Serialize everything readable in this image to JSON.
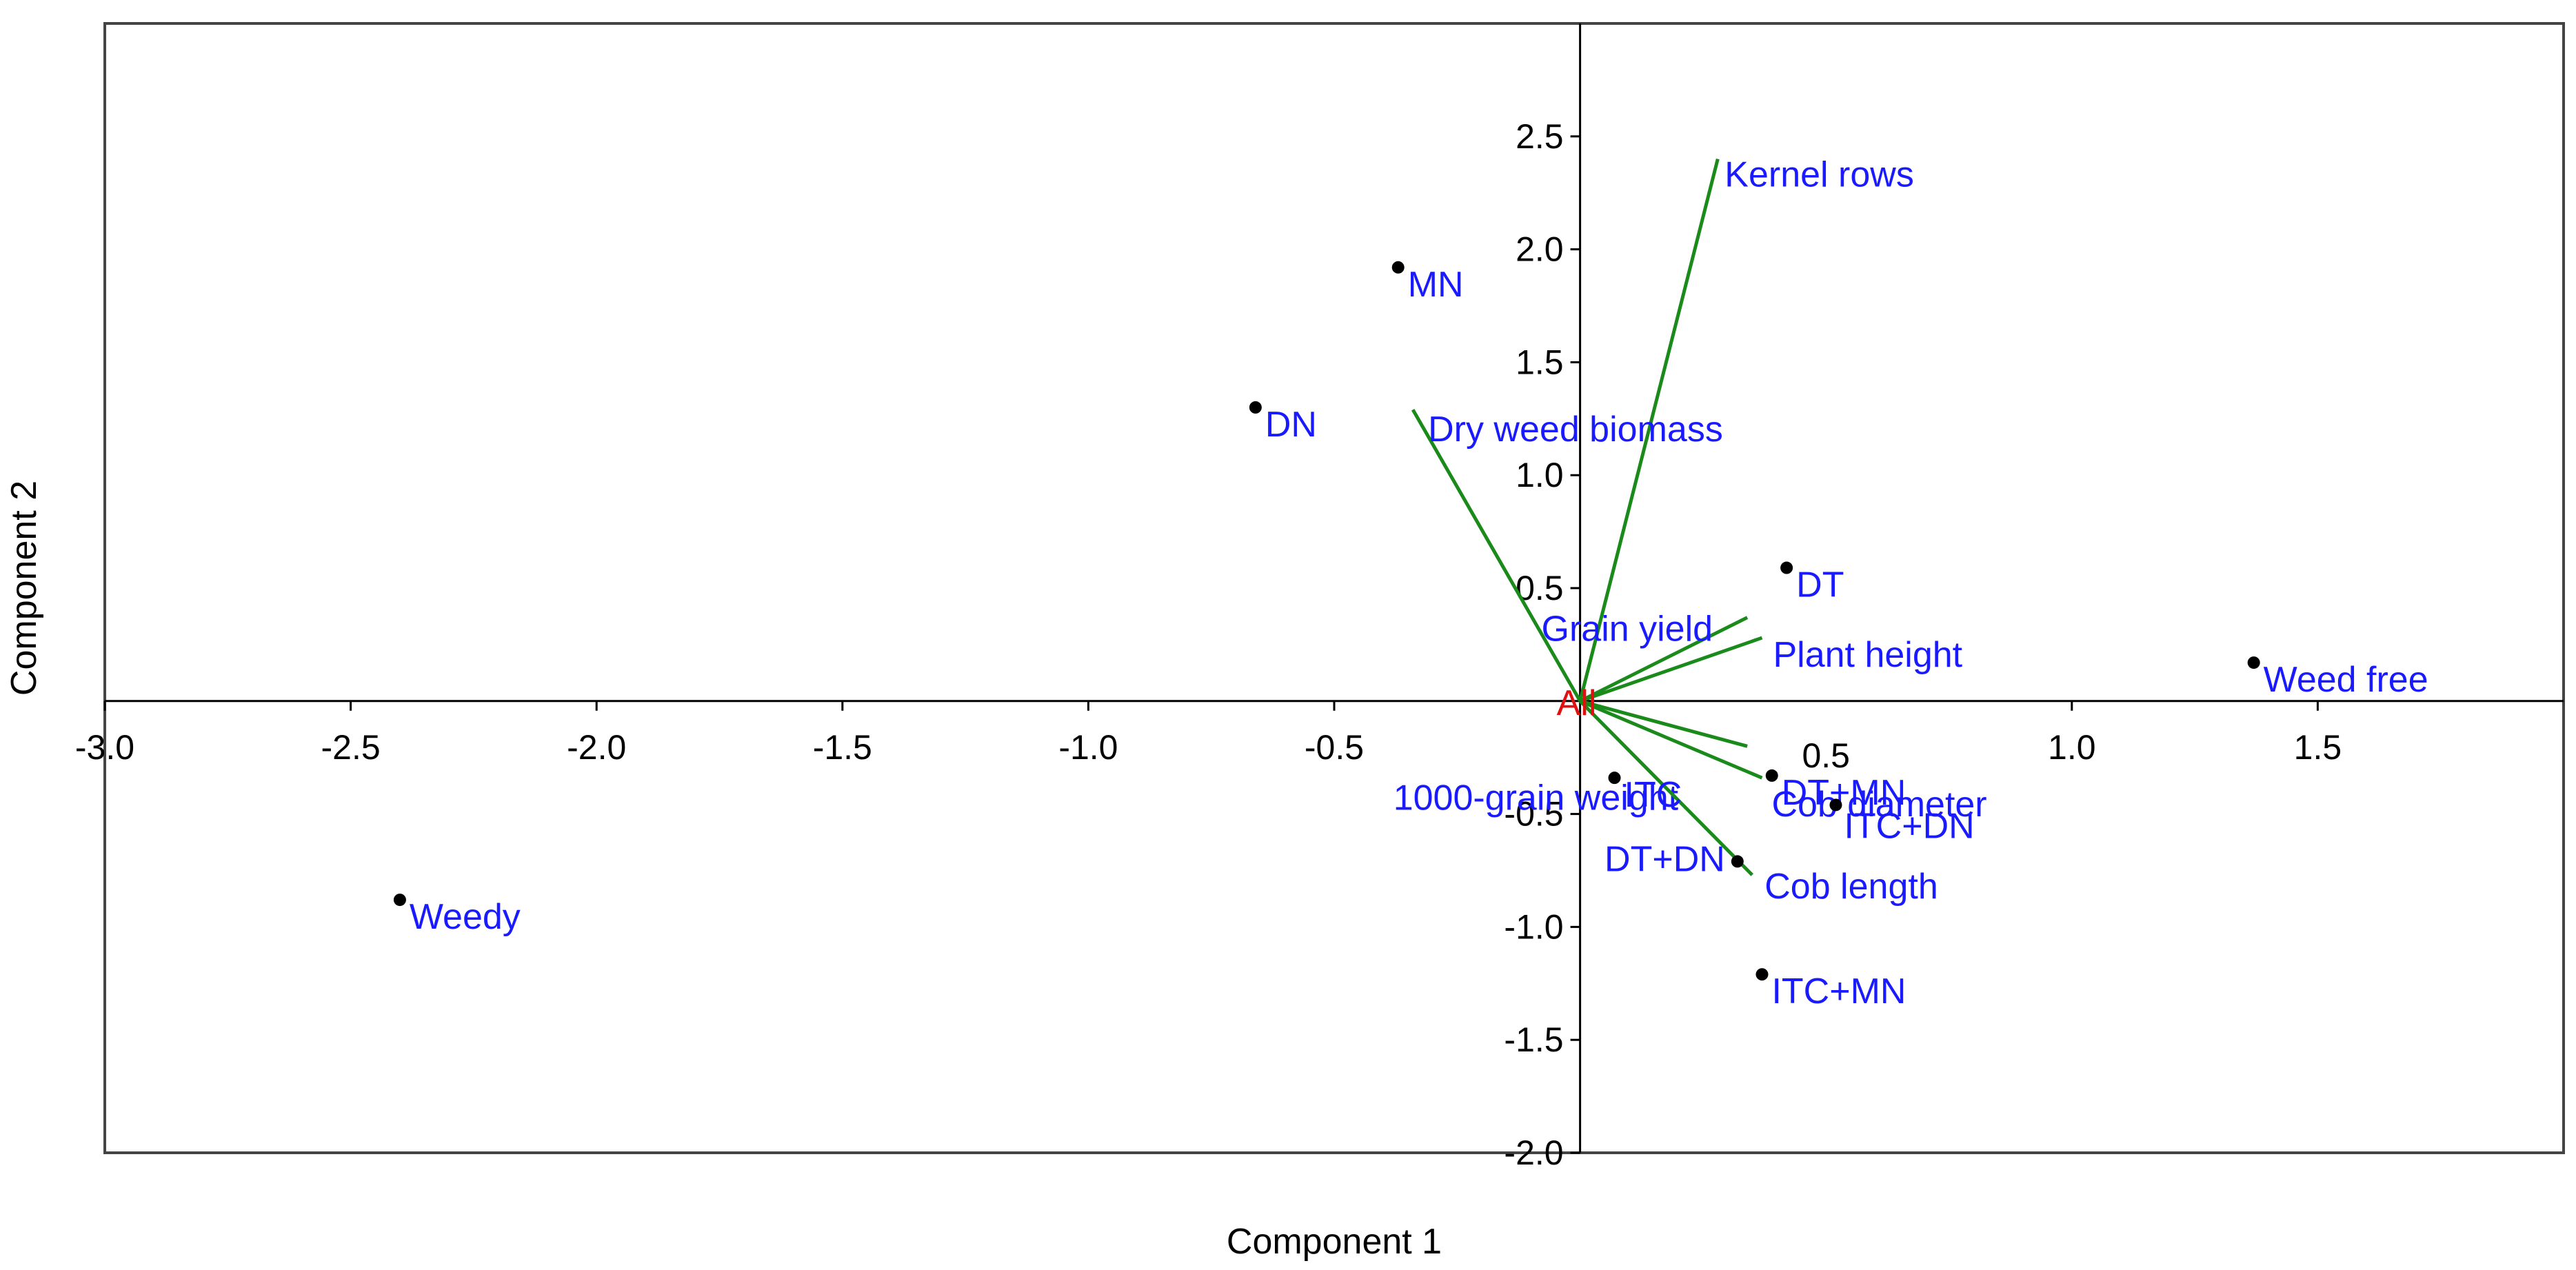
{
  "chart_data": {
    "type": "scatter",
    "subtype": "biplot",
    "title": "",
    "xlabel": "Component 1",
    "ylabel": "Component 2",
    "xlim": [
      -3.0,
      2.0
    ],
    "ylim": [
      -2.0,
      3.0
    ],
    "xticks": [
      -3.0,
      -2.5,
      -2.0,
      -1.5,
      -1.0,
      -0.5,
      1.0,
      1.5
    ],
    "xtick_labels": [
      "-3.0",
      "-2.5",
      "-2.0",
      "-1.5",
      "-1.0",
      "-0.5",
      "1.0",
      "1.5"
    ],
    "yticks": [
      2.5,
      2.0,
      1.5,
      1.0,
      0.5,
      -0.5,
      -1.0,
      -1.5,
      -2.0
    ],
    "ytick_labels": [
      "2.5",
      "2.0",
      "1.5",
      "1.0",
      "0.5",
      "-0.5",
      "-1.0",
      "-1.5",
      "-2.0"
    ],
    "extra_x_label": {
      "x": 0.5,
      "text": "0.5"
    },
    "grid": false,
    "legend": "none",
    "colors": {
      "points": "#000000",
      "point_labels": "#1a1aff",
      "vectors": "#1a8a1a",
      "vector_labels": "#1a1aff",
      "origin_label": "#e01010",
      "axes": "#000000",
      "frame": "#444444"
    },
    "points": [
      {
        "label": "MN",
        "x": -0.37,
        "y": 1.92
      },
      {
        "label": "DN",
        "x": -0.66,
        "y": 1.3
      },
      {
        "label": "DT",
        "x": 0.42,
        "y": 0.59
      },
      {
        "label": "Weed free",
        "x": 1.37,
        "y": 0.17
      },
      {
        "label": "DT+MN",
        "x": 0.39,
        "y": -0.33
      },
      {
        "label": "ITC",
        "x": 0.07,
        "y": -0.34
      },
      {
        "label": "ITC+DN",
        "x": 0.52,
        "y": -0.46
      },
      {
        "label": "DT+DN",
        "x": 0.32,
        "y": -0.71
      },
      {
        "label": "ITC+MN",
        "x": 0.37,
        "y": -1.21
      },
      {
        "label": "Weedy",
        "x": -2.4,
        "y": -0.88
      }
    ],
    "vectors": [
      {
        "label": "Kernel rows",
        "x": 0.28,
        "y": 2.4
      },
      {
        "label": "Dry weed biomass",
        "x": -0.34,
        "y": 1.29
      },
      {
        "label": "Grain yield",
        "x": 0.34,
        "y": 0.37
      },
      {
        "label": "Plant height",
        "x": 0.37,
        "y": 0.28
      },
      {
        "label": "1000-grain weight",
        "x": 0.34,
        "y": -0.2
      },
      {
        "label": "Cob diameter",
        "x": 0.37,
        "y": -0.34
      },
      {
        "label": "Cob length",
        "x": 0.35,
        "y": -0.77
      }
    ],
    "origin_label": "All"
  }
}
